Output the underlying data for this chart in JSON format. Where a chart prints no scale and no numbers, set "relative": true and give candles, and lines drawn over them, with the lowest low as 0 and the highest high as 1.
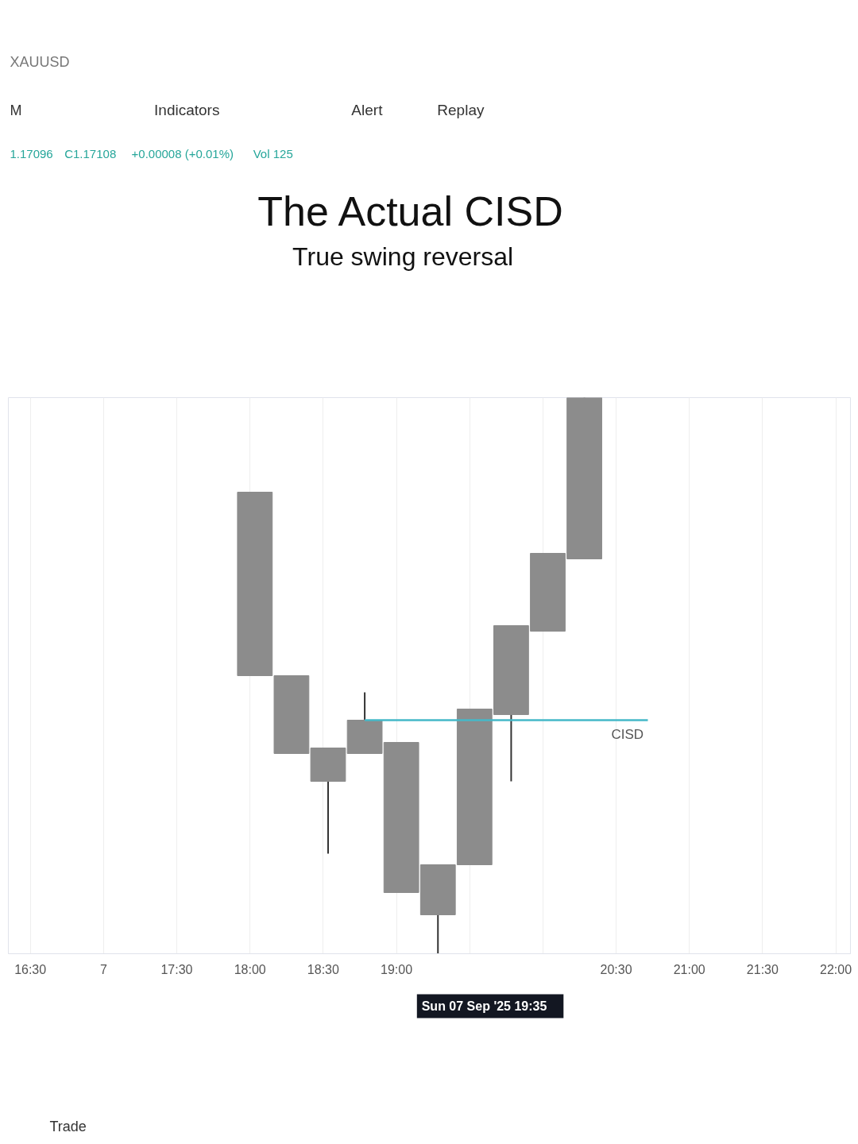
{
  "chart_data": {
    "type": "candlestick",
    "title": "The Actual CISD",
    "subtitle": "True swing reversal",
    "relative": true,
    "color": "#8c8c8c",
    "x": [
      "2025-09-07T18:02",
      "2025-09-07T18:17",
      "2025-09-07T18:32",
      "2025-09-07T18:47",
      "2025-09-07T19:02",
      "2025-09-07T19:17",
      "2025-09-07T19:32",
      "2025-09-07T19:47",
      "2025-09-07T20:02",
      "2025-09-07T20:17"
    ],
    "ohlc": [
      [
        0.5,
        0.83,
        0.5,
        0.83
      ],
      [
        0.36,
        0.5,
        0.36,
        0.5
      ],
      [
        0.31,
        0.37,
        0.18,
        0.37
      ],
      [
        0.36,
        0.47,
        0.36,
        0.42
      ],
      [
        0.11,
        0.38,
        0.11,
        0.38
      ],
      [
        0.07,
        0.16,
        0,
        0.16
      ],
      [
        0.16,
        0.44,
        0.16,
        0.44
      ],
      [
        0.43,
        0.59,
        0.31,
        0.59
      ],
      [
        0.58,
        0.72,
        0.58,
        0.72
      ],
      [
        0.71,
        1,
        0.71,
        1
      ]
    ],
    "series": [
      {
        "type": "line",
        "name": "CISD",
        "color": "#45b8c8",
        "x": [
          "2025-09-07T18:47",
          "2025-09-07T20:43"
        ],
        "values": [
          0.42,
          0.42
        ]
      }
    ],
    "xlim": [
      "2025-09-07T16:21",
      "2025-09-07T22:06"
    ],
    "xticks": [
      {
        "value": "2025-09-07T16:30",
        "label": "16:30"
      },
      {
        "value": "2025-09-07T17:00",
        "label": "7"
      },
      {
        "value": "2025-09-07T17:30",
        "label": "17:30"
      },
      {
        "value": "2025-09-07T18:00",
        "label": "18:00"
      },
      {
        "value": "2025-09-07T18:30",
        "label": "18:30"
      },
      {
        "value": "2025-09-07T19:00",
        "label": "19:00"
      },
      {
        "value": "2025-09-07T19:30",
        "label": null
      },
      {
        "value": "2025-09-07T20:00",
        "label": null
      },
      {
        "value": "2025-09-07T20:30",
        "label": "20:30"
      },
      {
        "value": "2025-09-07T21:00",
        "label": "21:00"
      },
      {
        "value": "2025-09-07T21:30",
        "label": "21:30"
      },
      {
        "value": "2025-09-07T22:00",
        "label": "22:00"
      }
    ],
    "grid": "x",
    "annotations": [
      "XAUUSD",
      "M",
      "Indicators",
      "Alert",
      "Replay",
      "1.17096",
      "C1.17108",
      "+0.00008 (+0.01%)",
      "Vol 125",
      "Sun 07 Sep '25   19:35",
      "Trade"
    ]
  }
}
